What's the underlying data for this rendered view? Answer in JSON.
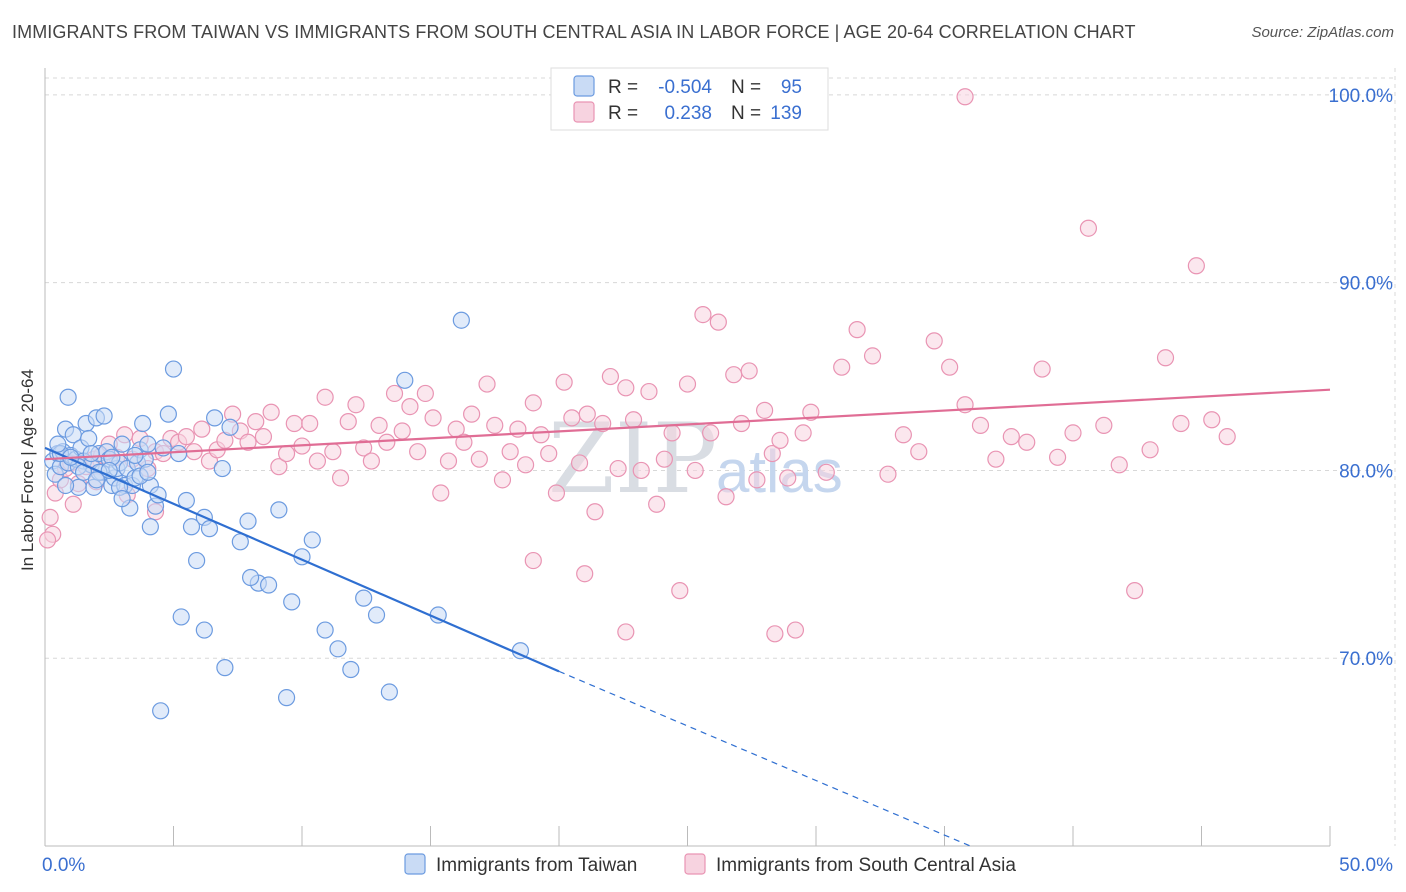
{
  "header": {
    "title": "IMMIGRANTS FROM TAIWAN VS IMMIGRANTS FROM SOUTH CENTRAL ASIA IN LABOR FORCE | AGE 20-64 CORRELATION CHART",
    "source": "Source: ZipAtlas.com"
  },
  "watermark": {
    "zip": "ZIP",
    "atlas": "atlas"
  },
  "colors": {
    "taiwan": "#6c9be0",
    "taiwan_fill": "#c9dbf5",
    "taiwan_line": "#2f6fd1",
    "sca": "#e994b3",
    "sca_fill": "#f7d3e0",
    "sca_line": "#e06d95",
    "grid": "#d8d8d8",
    "tick_text": "#3a6fd0"
  },
  "legend": {
    "r_label": "R =",
    "n_label": "N =",
    "rows": [
      {
        "r": "-0.504",
        "n": "95"
      },
      {
        "r": "0.238",
        "n": "139"
      }
    ]
  },
  "chart_data": {
    "type": "scatter",
    "title": "IMMIGRANTS FROM TAIWAN VS IMMIGRANTS FROM SOUTH CENTRAL ASIA IN LABOR FORCE | AGE 20-64 CORRELATION CHART",
    "xlabel": "",
    "ylabel": "In Labor Force | Age 20-64",
    "xlim": [
      0,
      50
    ],
    "ylim": [
      60,
      100
    ],
    "x_ticks": [
      0,
      50
    ],
    "x_tick_labels": [
      "0.0%",
      "50.0%"
    ],
    "y_ticks": [
      70,
      80,
      90,
      100
    ],
    "y_tick_labels": [
      "70.0%",
      "80.0%",
      "90.0%",
      "100.0%"
    ],
    "grid": true,
    "legend_position": "top-center",
    "series": [
      {
        "name": "Immigrants from Taiwan",
        "r": -0.504,
        "n": 95,
        "trend": {
          "x": [
            0,
            20
          ],
          "y": [
            81.2,
            69.3
          ],
          "dashed_to": [
            36,
            60
          ]
        },
        "points": [
          [
            0.3,
            80.5
          ],
          [
            0.4,
            79.8
          ],
          [
            0.5,
            80.9
          ],
          [
            0.6,
            80.2
          ],
          [
            0.7,
            81.0
          ],
          [
            0.8,
            82.2
          ],
          [
            0.9,
            80.4
          ],
          [
            1.0,
            80.8
          ],
          [
            1.1,
            81.9
          ],
          [
            1.2,
            80.6
          ],
          [
            1.3,
            79.1
          ],
          [
            1.4,
            81.2
          ],
          [
            1.5,
            80.5
          ],
          [
            1.6,
            82.5
          ],
          [
            1.7,
            81.7
          ],
          [
            1.8,
            80.3
          ],
          [
            1.9,
            79.1
          ],
          [
            2.0,
            82.8
          ],
          [
            2.1,
            80.9
          ],
          [
            2.2,
            79.9
          ],
          [
            2.3,
            82.9
          ],
          [
            2.4,
            81.0
          ],
          [
            2.5,
            80.6
          ],
          [
            2.6,
            79.2
          ],
          [
            2.7,
            79.6
          ],
          [
            2.8,
            80.1
          ],
          [
            2.9,
            80.4
          ],
          [
            3.0,
            81.4
          ],
          [
            3.1,
            79.2
          ],
          [
            3.2,
            80.1
          ],
          [
            3.3,
            78.0
          ],
          [
            3.4,
            79.2
          ],
          [
            3.5,
            79.6
          ],
          [
            3.6,
            80.4
          ],
          [
            3.7,
            81.1
          ],
          [
            3.8,
            82.5
          ],
          [
            3.9,
            80.6
          ],
          [
            4.0,
            81.4
          ],
          [
            4.1,
            77.0
          ],
          [
            4.3,
            78.1
          ],
          [
            4.6,
            81.2
          ],
          [
            4.8,
            83.0
          ],
          [
            5.0,
            85.4
          ],
          [
            5.2,
            80.9
          ],
          [
            5.5,
            78.4
          ],
          [
            5.9,
            75.2
          ],
          [
            6.2,
            77.5
          ],
          [
            6.4,
            76.9
          ],
          [
            6.6,
            82.8
          ],
          [
            6.9,
            80.1
          ],
          [
            7.2,
            82.3
          ],
          [
            7.6,
            76.2
          ],
          [
            7.9,
            77.3
          ],
          [
            8.3,
            74.0
          ],
          [
            8.7,
            73.9
          ],
          [
            9.1,
            77.9
          ],
          [
            9.6,
            73.0
          ],
          [
            10.0,
            75.4
          ],
          [
            10.4,
            76.3
          ],
          [
            10.9,
            71.5
          ],
          [
            11.4,
            70.5
          ],
          [
            11.9,
            69.4
          ],
          [
            12.4,
            73.2
          ],
          [
            12.9,
            72.3
          ],
          [
            13.4,
            68.2
          ],
          [
            14.0,
            84.8
          ],
          [
            15.3,
            72.3
          ],
          [
            16.2,
            88.0
          ],
          [
            4.5,
            67.2
          ],
          [
            5.3,
            72.2
          ],
          [
            7.0,
            69.5
          ],
          [
            9.4,
            67.9
          ],
          [
            0.9,
            83.9
          ],
          [
            1.8,
            80.9
          ],
          [
            2.6,
            80.7
          ],
          [
            4.1,
            79.2
          ],
          [
            5.7,
            77.0
          ],
          [
            6.2,
            71.5
          ],
          [
            8.0,
            74.3
          ],
          [
            18.5,
            70.4
          ],
          [
            0.6,
            80.9
          ],
          [
            1.3,
            80.2
          ],
          [
            2.1,
            79.9
          ],
          [
            2.9,
            79.1
          ],
          [
            3.7,
            79.7
          ],
          [
            4.4,
            78.7
          ],
          [
            0.5,
            81.4
          ],
          [
            1.0,
            80.7
          ],
          [
            1.5,
            79.9
          ],
          [
            2.0,
            79.5
          ],
          [
            2.5,
            80.0
          ],
          [
            3.0,
            78.5
          ],
          [
            3.5,
            80.8
          ],
          [
            4.0,
            79.9
          ],
          [
            0.8,
            79.2
          ]
        ]
      },
      {
        "name": "Immigrants from South Central Asia",
        "r": 0.238,
        "n": 139,
        "trend": {
          "x": [
            0,
            50
          ],
          "y": [
            80.6,
            84.3
          ]
        },
        "points": [
          [
            0.2,
            77.5
          ],
          [
            0.4,
            78.8
          ],
          [
            0.6,
            79.5
          ],
          [
            0.8,
            80.1
          ],
          [
            1.0,
            80.4
          ],
          [
            1.3,
            79.3
          ],
          [
            1.6,
            80.2
          ],
          [
            1.9,
            80.6
          ],
          [
            2.2,
            80.8
          ],
          [
            2.5,
            81.4
          ],
          [
            2.8,
            80.7
          ],
          [
            3.1,
            81.9
          ],
          [
            3.4,
            80.6
          ],
          [
            3.7,
            81.7
          ],
          [
            4.0,
            80.1
          ],
          [
            4.3,
            81.0
          ],
          [
            4.6,
            80.9
          ],
          [
            4.9,
            81.7
          ],
          [
            5.2,
            81.5
          ],
          [
            5.5,
            81.8
          ],
          [
            5.8,
            81.0
          ],
          [
            6.1,
            82.2
          ],
          [
            6.4,
            80.5
          ],
          [
            6.7,
            81.1
          ],
          [
            7.0,
            81.6
          ],
          [
            7.3,
            83.0
          ],
          [
            7.6,
            82.1
          ],
          [
            7.9,
            81.5
          ],
          [
            8.2,
            82.6
          ],
          [
            8.5,
            81.8
          ],
          [
            8.8,
            83.1
          ],
          [
            9.1,
            80.2
          ],
          [
            9.4,
            80.9
          ],
          [
            9.7,
            82.5
          ],
          [
            10.0,
            81.3
          ],
          [
            10.3,
            82.5
          ],
          [
            10.6,
            80.5
          ],
          [
            10.9,
            83.9
          ],
          [
            11.2,
            81.0
          ],
          [
            11.5,
            79.6
          ],
          [
            11.8,
            82.6
          ],
          [
            12.1,
            83.5
          ],
          [
            12.4,
            81.2
          ],
          [
            12.7,
            80.5
          ],
          [
            13.0,
            82.4
          ],
          [
            13.3,
            81.5
          ],
          [
            13.6,
            84.1
          ],
          [
            13.9,
            82.1
          ],
          [
            14.2,
            83.4
          ],
          [
            14.5,
            81.0
          ],
          [
            14.8,
            84.1
          ],
          [
            15.1,
            82.8
          ],
          [
            15.4,
            78.8
          ],
          [
            15.7,
            80.5
          ],
          [
            16.0,
            82.2
          ],
          [
            16.3,
            81.5
          ],
          [
            16.6,
            83.0
          ],
          [
            16.9,
            80.6
          ],
          [
            17.2,
            84.6
          ],
          [
            17.5,
            82.4
          ],
          [
            17.8,
            79.5
          ],
          [
            18.1,
            81.0
          ],
          [
            18.4,
            82.2
          ],
          [
            18.7,
            80.3
          ],
          [
            19.0,
            83.6
          ],
          [
            19.3,
            81.9
          ],
          [
            19.6,
            80.9
          ],
          [
            19.9,
            78.8
          ],
          [
            20.2,
            84.7
          ],
          [
            20.5,
            82.8
          ],
          [
            20.8,
            80.4
          ],
          [
            21.1,
            83.0
          ],
          [
            21.4,
            77.8
          ],
          [
            21.7,
            82.5
          ],
          [
            22.0,
            85.0
          ],
          [
            22.3,
            80.1
          ],
          [
            22.6,
            84.4
          ],
          [
            22.9,
            82.7
          ],
          [
            23.2,
            80.0
          ],
          [
            23.5,
            84.2
          ],
          [
            23.8,
            78.2
          ],
          [
            24.1,
            80.6
          ],
          [
            24.4,
            82.0
          ],
          [
            24.7,
            73.6
          ],
          [
            25.0,
            84.6
          ],
          [
            25.3,
            80.0
          ],
          [
            25.6,
            88.3
          ],
          [
            25.9,
            82.0
          ],
          [
            26.2,
            87.9
          ],
          [
            26.5,
            78.6
          ],
          [
            26.8,
            85.1
          ],
          [
            27.1,
            82.5
          ],
          [
            27.4,
            85.3
          ],
          [
            27.7,
            79.5
          ],
          [
            28.0,
            83.2
          ],
          [
            28.3,
            80.9
          ],
          [
            28.6,
            81.6
          ],
          [
            28.9,
            79.6
          ],
          [
            29.2,
            71.5
          ],
          [
            29.5,
            82.0
          ],
          [
            29.8,
            83.1
          ],
          [
            30.4,
            79.9
          ],
          [
            31.0,
            85.5
          ],
          [
            31.6,
            87.5
          ],
          [
            32.2,
            86.1
          ],
          [
            32.8,
            79.8
          ],
          [
            33.4,
            81.9
          ],
          [
            34.0,
            81.0
          ],
          [
            34.6,
            86.9
          ],
          [
            35.2,
            85.5
          ],
          [
            35.8,
            83.5
          ],
          [
            36.4,
            82.4
          ],
          [
            37.0,
            80.6
          ],
          [
            37.6,
            81.8
          ],
          [
            38.2,
            81.5
          ],
          [
            38.8,
            85.4
          ],
          [
            39.4,
            80.7
          ],
          [
            40.0,
            82.0
          ],
          [
            40.6,
            92.9
          ],
          [
            41.2,
            82.4
          ],
          [
            41.8,
            80.3
          ],
          [
            42.4,
            73.6
          ],
          [
            43.0,
            81.1
          ],
          [
            43.6,
            86.0
          ],
          [
            44.2,
            82.5
          ],
          [
            44.8,
            90.9
          ],
          [
            45.4,
            82.7
          ],
          [
            46.0,
            81.8
          ],
          [
            19.0,
            75.2
          ],
          [
            21.0,
            74.5
          ],
          [
            22.6,
            71.4
          ],
          [
            28.4,
            71.3
          ],
          [
            35.8,
            99.9
          ],
          [
            0.3,
            76.6
          ],
          [
            1.1,
            78.2
          ],
          [
            2.0,
            79.4
          ],
          [
            3.2,
            78.7
          ],
          [
            4.3,
            77.8
          ],
          [
            0.1,
            76.3
          ]
        ]
      }
    ]
  }
}
